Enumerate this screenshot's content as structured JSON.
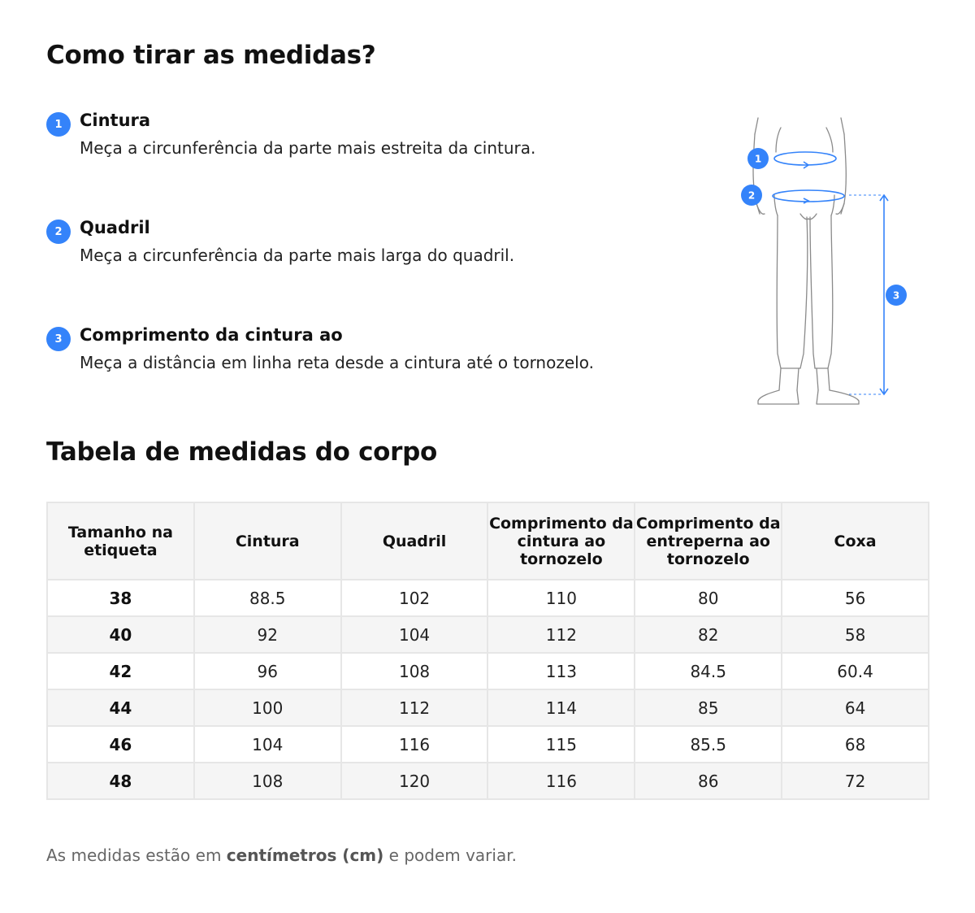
{
  "howto": {
    "title": "Como tirar as medidas?",
    "steps": [
      {
        "number": "1",
        "title": "Cintura",
        "description": "Meça a circunferência da parte mais estreita da cintura."
      },
      {
        "number": "2",
        "title": "Quadril",
        "description": "Meça a circunferência da parte mais larga do quadril."
      },
      {
        "number": "3",
        "title": "Comprimento da cintura ao",
        "description": "Meça a distância em linha reta desde a cintura até o tornozelo."
      }
    ]
  },
  "figure": {
    "labels": [
      "1",
      "2",
      "3"
    ],
    "accent_color": "#3483fa",
    "line_color": "#8a8a8a"
  },
  "table": {
    "title": "Tabela de medidas do corpo",
    "headers": [
      "Tamanho na etiqueta",
      "Cintura",
      "Quadril",
      "Comprimento da cintura ao tornozelo",
      "Comprimento da entreperna ao tornozelo",
      "Coxa"
    ],
    "rows": [
      [
        "38",
        "88.5",
        "102",
        "110",
        "80",
        "56"
      ],
      [
        "40",
        "92",
        "104",
        "112",
        "82",
        "58"
      ],
      [
        "42",
        "96",
        "108",
        "113",
        "84.5",
        "60.4"
      ],
      [
        "44",
        "100",
        "112",
        "114",
        "85",
        "64"
      ],
      [
        "46",
        "104",
        "116",
        "115",
        "85.5",
        "68"
      ],
      [
        "48",
        "108",
        "120",
        "116",
        "86",
        "72"
      ]
    ]
  },
  "footnote": {
    "prefix": "As medidas estão em",
    "unit": "centímetros (cm)",
    "suffix": "e podem variar."
  },
  "colors": {
    "accent": "#3483fa",
    "header_bg": "#f5f5f5",
    "border": "#e6e6e6"
  }
}
